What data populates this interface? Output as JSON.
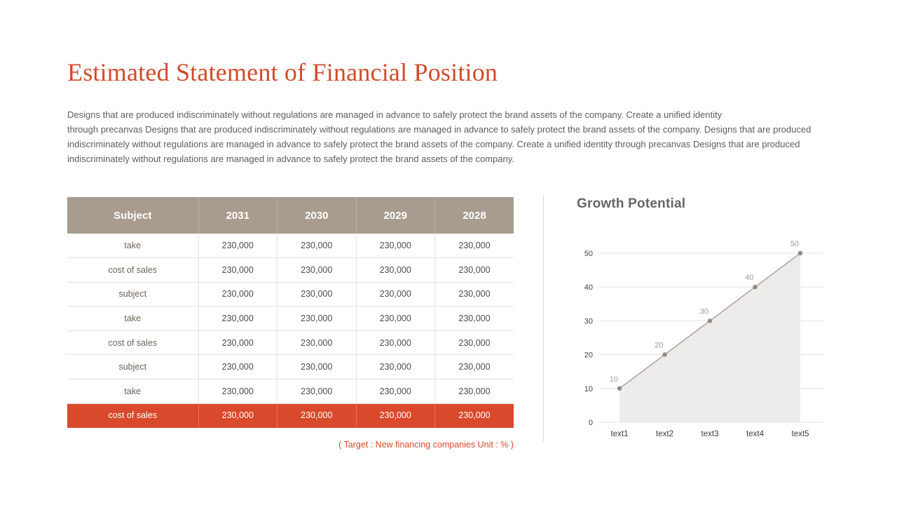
{
  "page": {
    "title": "Estimated Statement of Financial Position",
    "paragraph": "Designs that are produced indiscriminately without regulations are managed in advance to safely protect the brand assets of the company. Create a unified identity\nthrough precanvas Designs that are produced indiscriminately without regulations are managed in advance to safely protect the brand assets of the company. Designs that are produced indiscriminately without regulations are managed in advance to safely protect the brand assets of the company. Create a unified identity through precanvas Designs that are produced indiscriminately without regulations are managed in advance to safely protect the brand assets of the company."
  },
  "table": {
    "headers": [
      "Subject",
      "2031",
      "2030",
      "2029",
      "2028"
    ],
    "rows": [
      {
        "label": "take",
        "values": [
          "230,000",
          "230,000",
          "230,000",
          "230,000"
        ],
        "highlight": false
      },
      {
        "label": "cost of sales",
        "values": [
          "230,000",
          "230,000",
          "230,000",
          "230,000"
        ],
        "highlight": false
      },
      {
        "label": "subject",
        "values": [
          "230,000",
          "230,000",
          "230,000",
          "230,000"
        ],
        "highlight": false
      },
      {
        "label": "take",
        "values": [
          "230,000",
          "230,000",
          "230,000",
          "230,000"
        ],
        "highlight": false
      },
      {
        "label": "cost of sales",
        "values": [
          "230,000",
          "230,000",
          "230,000",
          "230,000"
        ],
        "highlight": false
      },
      {
        "label": "subject",
        "values": [
          "230,000",
          "230,000",
          "230,000",
          "230,000"
        ],
        "highlight": false
      },
      {
        "label": "take",
        "values": [
          "230,000",
          "230,000",
          "230,000",
          "230,000"
        ],
        "highlight": false
      },
      {
        "label": "cost of sales",
        "values": [
          "230,000",
          "230,000",
          "230,000",
          "230,000"
        ],
        "highlight": true
      }
    ],
    "caption": "( Target : New financing companies Unit : % )"
  },
  "chart_data": {
    "type": "area",
    "title": "Growth Potential",
    "x": [
      "text1",
      "text2",
      "text3",
      "text4",
      "text5"
    ],
    "series": [
      {
        "name": "Growth Potential",
        "values": [
          10,
          20,
          30,
          40,
          50
        ]
      }
    ],
    "ylim": [
      0,
      50
    ],
    "yticks": [
      0,
      10,
      20,
      30,
      40,
      50
    ],
    "grid": true,
    "data_labels": [
      10,
      20,
      30,
      40,
      50
    ],
    "legend_position": "none"
  },
  "colors": {
    "accent": "#d9492b",
    "title_text": "#d14b2a",
    "table_header_bg": "#a79c8e",
    "body_text": "#5c5c5c",
    "chart_line": "#a8a29b",
    "chart_dot": "#8f8a84",
    "chart_fill": "#edecea",
    "gridline": "#e3e3e3"
  }
}
